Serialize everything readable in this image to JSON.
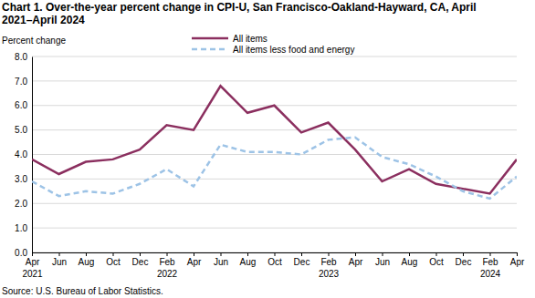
{
  "chart_data": {
    "type": "line",
    "title": "Chart 1. Over-the-year percent change in CPI-U, San Francisco-Oakland-Hayward, CA, April 2021–April 2024",
    "y_label": "Percent change",
    "source": "Source: U.S. Bureau of Labor Statistics.",
    "categories": [
      "Apr 2021",
      "Jun",
      "Aug",
      "Oct",
      "Dec",
      "Feb 2022",
      "Apr",
      "Jun",
      "Aug",
      "Oct",
      "Dec",
      "Feb 2023",
      "Apr",
      "Jun",
      "Aug",
      "Oct",
      "Dec",
      "Feb 2024",
      "Apr"
    ],
    "series": [
      {
        "name": "All items",
        "color": "#8b2f5f",
        "line_style": "solid",
        "values": [
          3.8,
          3.2,
          3.7,
          3.8,
          4.2,
          5.2,
          5.0,
          6.8,
          5.7,
          6.0,
          4.9,
          5.3,
          4.2,
          2.9,
          3.4,
          2.8,
          2.6,
          2.4,
          3.8
        ]
      },
      {
        "name": "All items less food and energy",
        "color": "#9dc3e6",
        "line_style": "dashed",
        "values": [
          2.9,
          2.3,
          2.5,
          2.4,
          2.8,
          3.4,
          2.7,
          4.4,
          4.1,
          4.1,
          4.0,
          4.6,
          4.7,
          3.9,
          3.6,
          3.1,
          2.5,
          2.2,
          3.1
        ]
      }
    ],
    "ylim": [
      0,
      8
    ],
    "yticks": [
      {
        "value": 0,
        "label": "0.0"
      },
      {
        "value": 1,
        "label": "1.0"
      },
      {
        "value": 2,
        "label": "2.0"
      },
      {
        "value": 3,
        "label": "3.0"
      },
      {
        "value": 4,
        "label": "4.0"
      },
      {
        "value": 5,
        "label": "5.0"
      },
      {
        "value": 6,
        "label": "6.0"
      },
      {
        "value": 7,
        "label": "7.0"
      },
      {
        "value": 8,
        "label": "8.0"
      }
    ],
    "grid": true,
    "legend": "upper center"
  }
}
